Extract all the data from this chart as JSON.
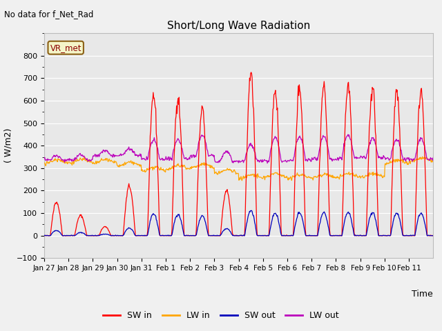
{
  "title": "Short/Long Wave Radiation",
  "xlabel": "Time",
  "ylabel": "( W/m2)",
  "top_label": "No data for f_Net_Rad",
  "station_label": "VR_met",
  "ylim": [
    -100,
    900
  ],
  "yticks": [
    -100,
    0,
    100,
    200,
    300,
    400,
    500,
    600,
    700,
    800
  ],
  "colors": {
    "SW_in": "#ff0000",
    "LW_in": "#ffa500",
    "SW_out": "#0000bb",
    "LW_out": "#bb00bb"
  },
  "bg_color": "#e8e8e8",
  "fig_bg": "#f0f0f0",
  "legend_labels": [
    "SW in",
    "LW in",
    "SW out",
    "LW out"
  ],
  "xtick_labels": [
    "Jan 27",
    "Jan 28",
    "Jan 29",
    "Jan 30",
    "Jan 31",
    "Feb 1",
    "Feb 2",
    "Feb 3",
    "Feb 4",
    "Feb 5",
    "Feb 6",
    "Feb 7",
    "Feb 8",
    "Feb 9",
    "Feb 10",
    "Feb 11"
  ]
}
